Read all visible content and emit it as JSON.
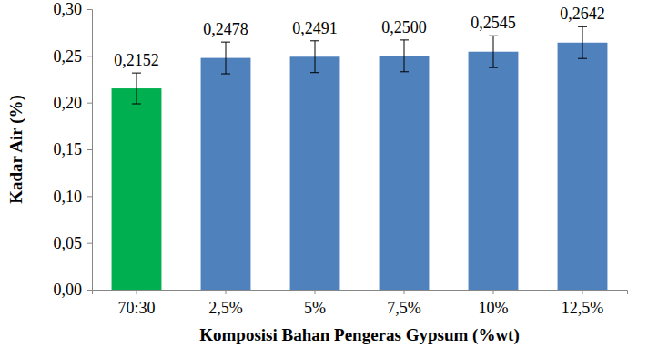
{
  "chart_data": {
    "type": "bar",
    "x_label": "Komposisi Bahan Pengeras Gypsum (%wt)",
    "y_label": "Kadar Air (%)",
    "categories": [
      "70:30",
      "2,5%",
      "5%",
      "7,5%",
      "10%",
      "12,5%"
    ],
    "values": [
      0.2152,
      0.2478,
      0.2491,
      0.25,
      0.2545,
      0.2642
    ],
    "value_labels": [
      "0,2152",
      "0,2478",
      "0,2491",
      "0,2500",
      "0,2545",
      "0,2642"
    ],
    "errors": [
      0.0165,
      0.017,
      0.017,
      0.017,
      0.017,
      0.017
    ],
    "colors": [
      "#00b050",
      "#4f81bd",
      "#4f81bd",
      "#4f81bd",
      "#4f81bd",
      "#4f81bd"
    ],
    "ylim": [
      0,
      0.3
    ],
    "yticks": [
      {
        "value": 0,
        "label": "0,00"
      },
      {
        "value": 0.05,
        "label": "0,05"
      },
      {
        "value": 0.1,
        "label": "0,10"
      },
      {
        "value": 0.15,
        "label": "0,15"
      },
      {
        "value": 0.2,
        "label": "0,20"
      },
      {
        "value": 0.25,
        "label": "0,25"
      },
      {
        "value": 0.3,
        "label": "0,30"
      }
    ],
    "data_labels": true,
    "grid": false
  }
}
